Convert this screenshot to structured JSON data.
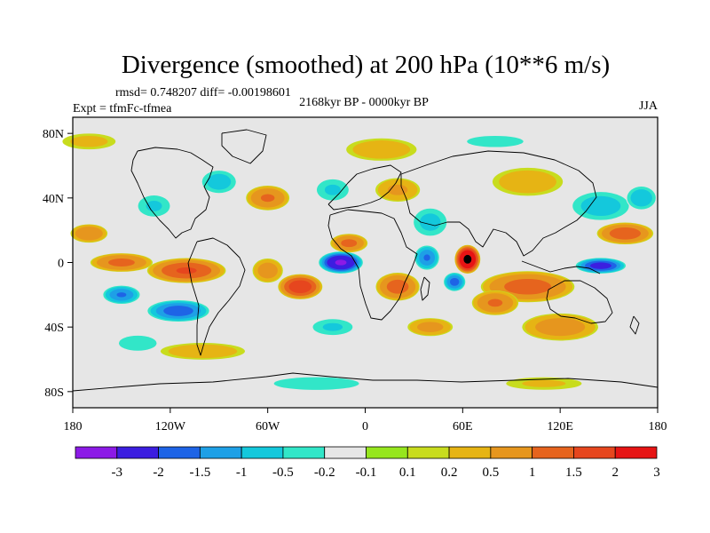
{
  "chart_data": {
    "type": "heatmap",
    "title": "Divergence (smoothed) at 200 hPa (10**6 m/s)",
    "stats_line": "rmsd= 0.748207 diff= -0.00198601",
    "period": "2168kyr BP - 0000kyr BP",
    "experiment": "Expt = tfmFc-tfmea",
    "season": "JJA",
    "projection": "cylindrical-equidistant",
    "xlim": [
      -180,
      180
    ],
    "ylim": [
      -90,
      90
    ],
    "x_ticks": [
      {
        "value": -180,
        "label": "180"
      },
      {
        "value": -120,
        "label": "120W"
      },
      {
        "value": -60,
        "label": "60W"
      },
      {
        "value": 0,
        "label": "0"
      },
      {
        "value": 60,
        "label": "60E"
      },
      {
        "value": 120,
        "label": "120E"
      },
      {
        "value": 180,
        "label": "180"
      }
    ],
    "y_ticks": [
      {
        "value": 80,
        "label": "80N"
      },
      {
        "value": 40,
        "label": "40N"
      },
      {
        "value": 0,
        "label": "0"
      },
      {
        "value": -40,
        "label": "40S"
      },
      {
        "value": -80,
        "label": "80S"
      }
    ],
    "colorbar": {
      "colors": [
        "#8c1ae6",
        "#3c1ee0",
        "#1e64e6",
        "#1ea0e6",
        "#14c8dc",
        "#32e6c8",
        "#e6e6e6",
        "#96e61e",
        "#c8dc1e",
        "#e6b414",
        "#e6961e",
        "#e6641e",
        "#e6461e",
        "#e61414"
      ],
      "boundaries": [
        "-3",
        "-2",
        "-1.5",
        "-1",
        "-0.5",
        "-0.2",
        "-0.1",
        "0.1",
        "0.2",
        "0.5",
        "1",
        "1.5",
        "2",
        "3"
      ]
    },
    "anomalies": [
      {
        "lon": -15,
        "lat": 0,
        "value": -3.2,
        "lon_radius": 14,
        "lat_radius": 7
      },
      {
        "lon": 63,
        "lat": 2,
        "value": 3.3,
        "lon_radius": 8,
        "lat_radius": 9
      },
      {
        "lon": 38,
        "lat": 3,
        "value": -1.6,
        "lon_radius": 8,
        "lat_radius": 8
      },
      {
        "lon": 55,
        "lat": -12,
        "value": -1.8,
        "lon_radius": 7,
        "lat_radius": 6
      },
      {
        "lon": 145,
        "lat": -2,
        "value": -2.4,
        "lon_radius": 16,
        "lat_radius": 5
      },
      {
        "lon": 160,
        "lat": 18,
        "value": 1.4,
        "lon_radius": 18,
        "lat_radius": 7
      },
      {
        "lon": 145,
        "lat": 35,
        "value": -0.8,
        "lon_radius": 20,
        "lat_radius": 10
      },
      {
        "lon": 170,
        "lat": 40,
        "value": -0.9,
        "lon_radius": 10,
        "lat_radius": 8
      },
      {
        "lon": 100,
        "lat": -15,
        "value": 1.3,
        "lon_radius": 30,
        "lat_radius": 10
      },
      {
        "lon": 120,
        "lat": -40,
        "value": 0.8,
        "lon_radius": 25,
        "lat_radius": 9
      },
      {
        "lon": -110,
        "lat": -5,
        "value": 1.6,
        "lon_radius": 25,
        "lat_radius": 8
      },
      {
        "lon": -150,
        "lat": 0,
        "value": 1.2,
        "lon_radius": 20,
        "lat_radius": 6
      },
      {
        "lon": -170,
        "lat": 18,
        "value": 1.0,
        "lon_radius": 12,
        "lat_radius": 6
      },
      {
        "lon": -115,
        "lat": -30,
        "value": -1.9,
        "lon_radius": 20,
        "lat_radius": 7
      },
      {
        "lon": -150,
        "lat": -20,
        "value": -1.6,
        "lon_radius": 12,
        "lat_radius": 6
      },
      {
        "lon": -40,
        "lat": -15,
        "value": 2.0,
        "lon_radius": 14,
        "lat_radius": 8
      },
      {
        "lon": -60,
        "lat": -5,
        "value": 0.8,
        "lon_radius": 10,
        "lat_radius": 8
      },
      {
        "lon": -10,
        "lat": 12,
        "value": 1.2,
        "lon_radius": 12,
        "lat_radius": 6
      },
      {
        "lon": 20,
        "lat": -15,
        "value": 1.3,
        "lon_radius": 14,
        "lat_radius": 9
      },
      {
        "lon": 80,
        "lat": -25,
        "value": 1.1,
        "lon_radius": 15,
        "lat_radius": 8
      },
      {
        "lon": 40,
        "lat": 25,
        "value": -0.7,
        "lon_radius": 12,
        "lat_radius": 10
      },
      {
        "lon": -60,
        "lat": 40,
        "value": 1.1,
        "lon_radius": 14,
        "lat_radius": 8
      },
      {
        "lon": -90,
        "lat": 50,
        "value": -0.8,
        "lon_radius": 12,
        "lat_radius": 8
      },
      {
        "lon": -130,
        "lat": 35,
        "value": -0.6,
        "lon_radius": 12,
        "lat_radius": 8
      },
      {
        "lon": 20,
        "lat": 45,
        "value": 0.6,
        "lon_radius": 15,
        "lat_radius": 8
      },
      {
        "lon": -20,
        "lat": 45,
        "value": -0.6,
        "lon_radius": 12,
        "lat_radius": 8
      },
      {
        "lon": 100,
        "lat": 50,
        "value": 0.4,
        "lon_radius": 25,
        "lat_radius": 10
      },
      {
        "lon": -20,
        "lat": -40,
        "value": -0.6,
        "lon_radius": 15,
        "lat_radius": 6
      },
      {
        "lon": 40,
        "lat": -40,
        "value": 0.7,
        "lon_radius": 15,
        "lat_radius": 6
      },
      {
        "lon": -100,
        "lat": -55,
        "value": 0.4,
        "lon_radius": 30,
        "lat_radius": 6
      },
      {
        "lon": -140,
        "lat": -50,
        "value": -0.5,
        "lon_radius": 15,
        "lat_radius": 6
      },
      {
        "lon": 10,
        "lat": 70,
        "value": 0.4,
        "lon_radius": 25,
        "lat_radius": 8
      },
      {
        "lon": 80,
        "lat": 75,
        "value": -0.3,
        "lon_radius": 30,
        "lat_radius": 6
      },
      {
        "lon": -170,
        "lat": 75,
        "value": 0.3,
        "lon_radius": 20,
        "lat_radius": 6
      },
      {
        "lon": -30,
        "lat": -75,
        "value": -0.35,
        "lon_radius": 40,
        "lat_radius": 6
      },
      {
        "lon": 110,
        "lat": -75,
        "value": 0.25,
        "lon_radius": 30,
        "lat_radius": 5
      }
    ]
  }
}
